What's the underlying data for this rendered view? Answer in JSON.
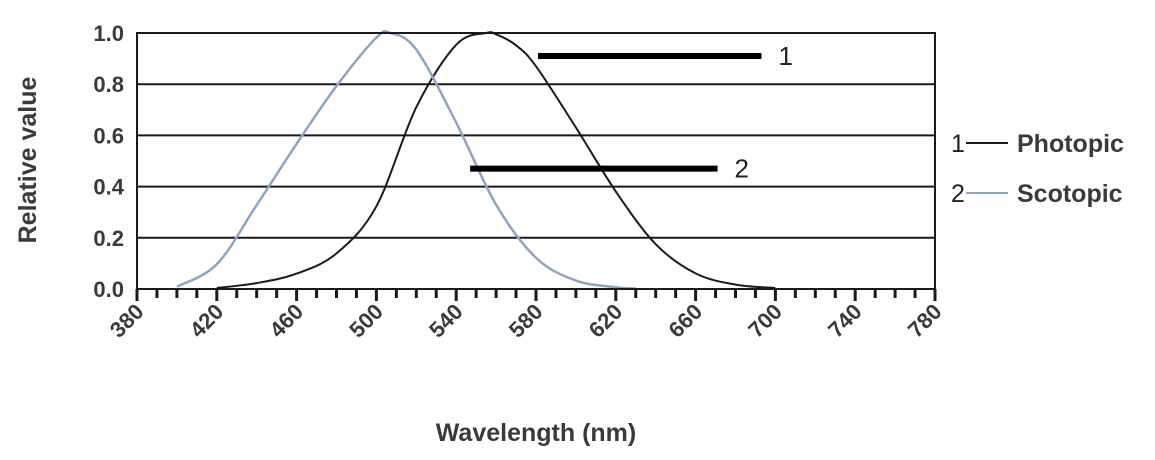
{
  "chart_data": {
    "type": "line",
    "xlabel": "Wavelength (nm)",
    "ylabel": "Relative value",
    "xlim": [
      380,
      780
    ],
    "ylim": [
      0,
      1.0
    ],
    "x_ticks": [
      "380",
      "420",
      "460",
      "500",
      "540",
      "580",
      "620",
      "660",
      "700",
      "740",
      "780"
    ],
    "y_ticks": [
      "0.0",
      "0.2",
      "0.4",
      "0.6",
      "0.8",
      "1.0"
    ],
    "grid": "horizontal",
    "legend_position": "right",
    "series": [
      {
        "name": "Photopic",
        "number": "1",
        "color": "#1a1a1a",
        "x": [
          420,
          440,
          460,
          480,
          500,
          520,
          540,
          555,
          560,
          570,
          580,
          600,
          620,
          640,
          660,
          680,
          700
        ],
        "values": [
          0.004,
          0.023,
          0.06,
          0.139,
          0.323,
          0.71,
          0.954,
          1.0,
          0.995,
          0.952,
          0.87,
          0.631,
          0.381,
          0.175,
          0.061,
          0.017,
          0.004
        ]
      },
      {
        "name": "Scotopic",
        "number": "2",
        "color": "#8fa3c3",
        "x": [
          400,
          420,
          440,
          460,
          480,
          500,
          507,
          520,
          540,
          560,
          580,
          600,
          620,
          630
        ],
        "values": [
          0.009,
          0.097,
          0.328,
          0.567,
          0.793,
          0.982,
          1.0,
          0.935,
          0.65,
          0.329,
          0.122,
          0.033,
          0.007,
          0.002
        ]
      }
    ],
    "callouts": [
      {
        "label": "1",
        "series": "Photopic"
      },
      {
        "label": "2",
        "series": "Scotopic"
      }
    ]
  }
}
